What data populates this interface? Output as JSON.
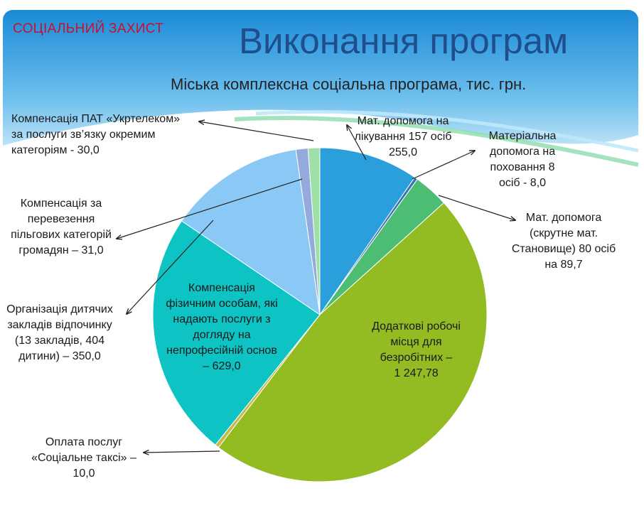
{
  "header": {
    "section_label": "СОЦІАЛЬНИЙ ЗАХИСТ",
    "title": "Виконання програм",
    "subtitle": "Міська комплексна соціальна програма, тис. грн."
  },
  "colors": {
    "banner_top": "#1a8ad6",
    "banner_bottom": "#e8f5fc",
    "accent_wave": "#7fd6a0"
  },
  "chart_data": {
    "type": "pie",
    "title": "Міська комплексна соціальна програма, тис. грн.",
    "start": "top",
    "direction": "clockwise",
    "slices": [
      {
        "label": "Мат. допомога на\nлікування 157 осіб\n255,0",
        "value": 255.0,
        "color": "#2b9fdc"
      },
      {
        "label": "Матеріальна\nдопомога на\nпоховання 8\nосіб - 8,0",
        "value": 8.0,
        "color": "#3a6fb5"
      },
      {
        "label": "Мат. допомога\n(скрутне мат.\nСтановище) 80 осіб\nна 89,7",
        "value": 89.7,
        "color": "#4dbd74"
      },
      {
        "label": "Додаткові робочі\nмісця для\nбезробітних –\n1 247,78",
        "value": 1247.78,
        "color": "#93bb22"
      },
      {
        "label": "Оплата послуг\n«Соціальне таксі» –\n10,0",
        "value": 10.0,
        "color": "#c9b84a"
      },
      {
        "label": "Компенсація\nфізичним особам, які\nнадають послуги з\nдогляду на\nнепрофесійній основ\n–  629,0",
        "value": 629.0,
        "color": "#0dc3c3"
      },
      {
        "label": "Організація дитячих\nзакладів відпочинку\n(13 закладів, 404\nдитини) – 350,0",
        "value": 350.0,
        "color": "#8ac9f5"
      },
      {
        "label": "Компенсація за\nперевезення\nпільгових категорій\nгромадян – 31,0",
        "value": 31.0,
        "color": "#94a9dc"
      },
      {
        "label": "Компенсація ПАТ «Укртелеком»\nза послуги зв’язку окремим\nкатегоріям - 30,0",
        "value": 30.0,
        "color": "#9ee0a8"
      }
    ]
  }
}
